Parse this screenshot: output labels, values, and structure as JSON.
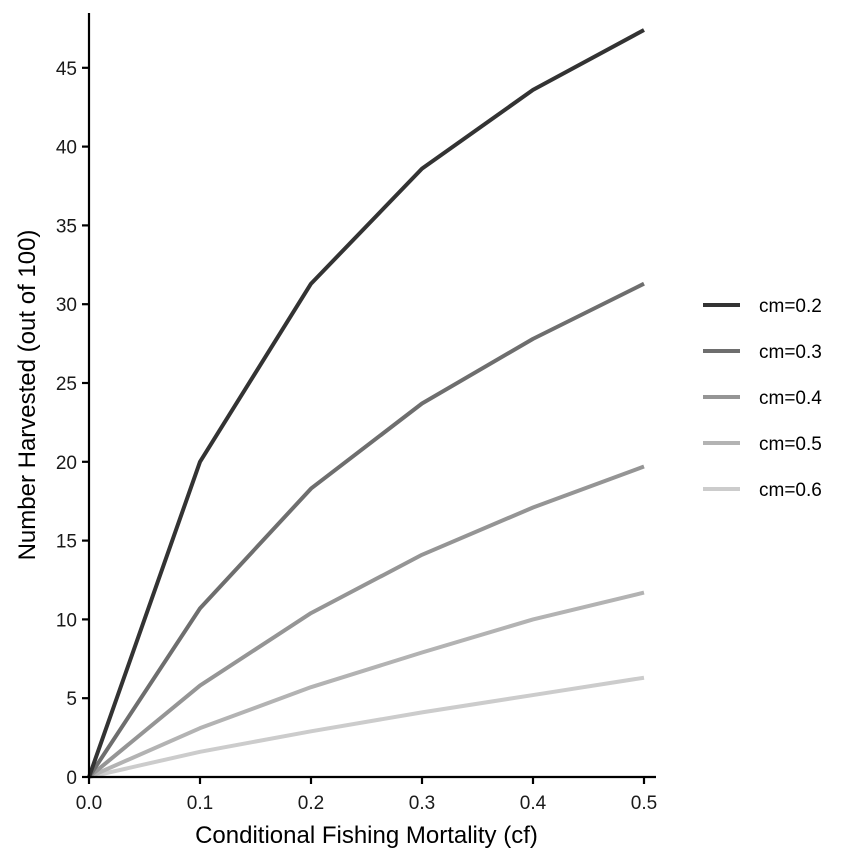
{
  "chart_data": {
    "type": "line",
    "title": "",
    "xlabel": "Conditional Fishing Mortality (cf)",
    "ylabel": "Number Harvested (out of 100)",
    "xlim": [
      0,
      0.5
    ],
    "ylim": [
      0,
      48
    ],
    "x_ticks": [
      0.0,
      0.1,
      0.2,
      0.3,
      0.4,
      0.5
    ],
    "x_tick_labels": [
      "0.0",
      "0.1",
      "0.2",
      "0.3",
      "0.4",
      "0.5"
    ],
    "y_ticks": [
      0,
      5,
      10,
      15,
      20,
      25,
      30,
      35,
      40,
      45
    ],
    "y_tick_labels": [
      "0",
      "5",
      "10",
      "15",
      "20",
      "25",
      "30",
      "35",
      "40",
      "45"
    ],
    "grid": false,
    "legend_position": "right",
    "x": [
      0.0,
      0.1,
      0.2,
      0.3,
      0.4,
      0.5
    ],
    "series": [
      {
        "name": "cm=0.2",
        "color": "#333333",
        "values": [
          0,
          20.0,
          31.3,
          38.6,
          43.6,
          47.4
        ]
      },
      {
        "name": "cm=0.3",
        "color": "#6e6e6e",
        "values": [
          0,
          10.7,
          18.3,
          23.7,
          27.8,
          31.3
        ]
      },
      {
        "name": "cm=0.4",
        "color": "#959595",
        "values": [
          0,
          5.8,
          10.4,
          14.1,
          17.1,
          19.7
        ]
      },
      {
        "name": "cm=0.5",
        "color": "#b3b3b3",
        "values": [
          0,
          3.1,
          5.7,
          7.9,
          10.0,
          11.7
        ]
      },
      {
        "name": "cm=0.6",
        "color": "#cccccc",
        "values": [
          0,
          1.6,
          2.9,
          4.1,
          5.2,
          6.3
        ]
      }
    ]
  }
}
